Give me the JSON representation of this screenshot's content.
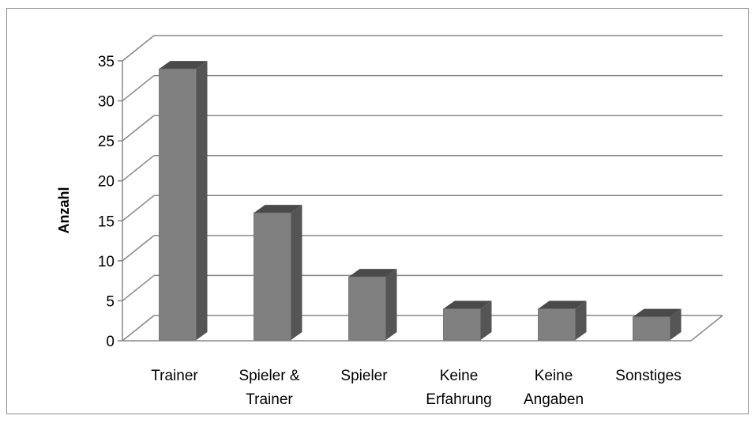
{
  "chart_data": {
    "type": "bar",
    "style": "3d-column",
    "categories": [
      "Trainer",
      "Spieler & Trainer",
      "Spieler",
      "Keine Erfahrung",
      "Keine Angaben",
      "Sonstiges"
    ],
    "category_lines": [
      [
        "Trainer"
      ],
      [
        "Spieler &",
        "Trainer"
      ],
      [
        "Spieler"
      ],
      [
        "Keine",
        "Erfahrung"
      ],
      [
        "Keine",
        "Angaben"
      ],
      [
        "Sonstiges"
      ]
    ],
    "values": [
      34,
      16,
      8,
      4,
      4,
      3
    ],
    "ylabel": "Anzahl",
    "xlabel": "",
    "ylim": [
      0,
      35
    ],
    "yticks": [
      "0",
      "5",
      "10",
      "15",
      "20",
      "25",
      "30",
      "35"
    ],
    "grid": true,
    "legend": "none",
    "colors": {
      "bar_front": "#808080",
      "bar_side": "#555555",
      "bar_top": "#4a4a4a",
      "grid": "#878787",
      "axis": "#878787"
    }
  }
}
